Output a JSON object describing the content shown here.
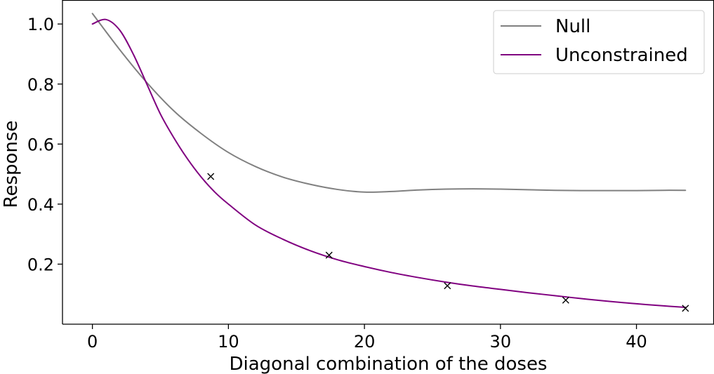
{
  "chart_data": {
    "type": "line",
    "title": "",
    "xlabel": "Diagonal combination of the doses",
    "ylabel": "Response",
    "xlim": [
      -2.2,
      45.7
    ],
    "ylim": [
      0.0,
      1.08
    ],
    "xticks": [
      0,
      10,
      20,
      30,
      40
    ],
    "yticks": [
      0.2,
      0.4,
      0.6,
      0.8,
      1.0
    ],
    "xtick_labels": [
      "0",
      "10",
      "20",
      "30",
      "40"
    ],
    "ytick_labels": [
      "0.2",
      "0.4",
      "0.6",
      "0.8",
      "1.0"
    ],
    "grid": false,
    "legend_position": "top-right",
    "series": [
      {
        "name": "Null",
        "color": "#808080",
        "x": [
          0,
          2,
          4,
          6,
          8,
          10,
          12,
          14,
          16,
          18,
          20,
          22,
          24,
          26,
          28,
          30,
          32,
          34,
          36,
          38,
          40,
          42,
          43.6
        ],
        "y": [
          1.035,
          0.915,
          0.805,
          0.71,
          0.635,
          0.572,
          0.525,
          0.49,
          0.466,
          0.449,
          0.44,
          0.442,
          0.447,
          0.45,
          0.451,
          0.45,
          0.448,
          0.446,
          0.445,
          0.445,
          0.445,
          0.446,
          0.446
        ]
      },
      {
        "name": "Unconstrained",
        "color": "#800080",
        "x": [
          0,
          1,
          2,
          3,
          4,
          5,
          6,
          7,
          8,
          9,
          10,
          12,
          14,
          16,
          18,
          20,
          22,
          24,
          26,
          28,
          30,
          32,
          34,
          36,
          38,
          40,
          42,
          43.6
        ],
        "y": [
          1.0,
          1.015,
          0.98,
          0.9,
          0.8,
          0.7,
          0.62,
          0.55,
          0.49,
          0.44,
          0.4,
          0.33,
          0.283,
          0.245,
          0.215,
          0.192,
          0.172,
          0.155,
          0.14,
          0.127,
          0.116,
          0.105,
          0.095,
          0.085,
          0.076,
          0.068,
          0.061,
          0.056
        ]
      }
    ],
    "markers": {
      "symbol": "x",
      "color": "#000000",
      "x": [
        8.7,
        17.4,
        26.1,
        34.8,
        43.6
      ],
      "y": [
        0.492,
        0.23,
        0.128,
        0.08,
        0.053
      ]
    }
  }
}
